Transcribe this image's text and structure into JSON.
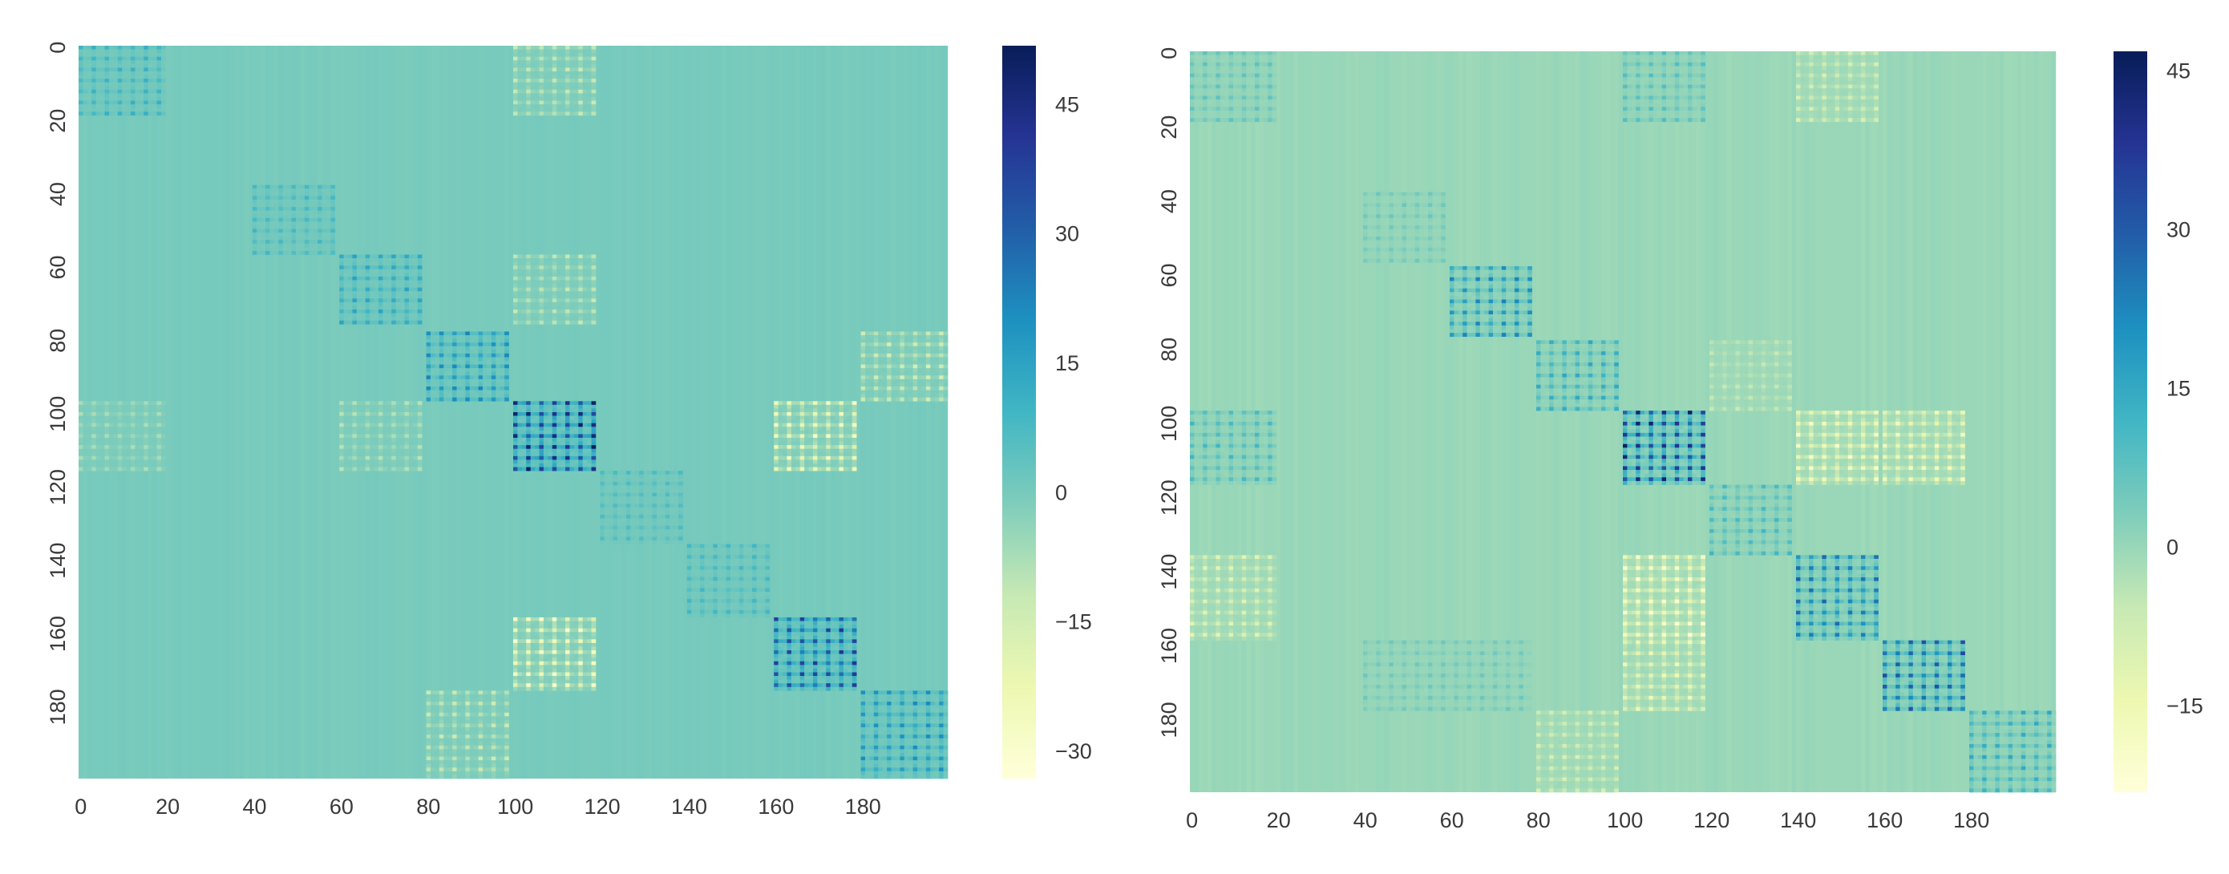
{
  "chart_data": [
    {
      "type": "heatmap",
      "title": "",
      "xlabel": "",
      "ylabel": "",
      "n": 200,
      "x_ticks": [
        0,
        20,
        40,
        60,
        80,
        100,
        120,
        140,
        160,
        180
      ],
      "y_ticks": [
        0,
        20,
        40,
        60,
        80,
        100,
        120,
        140,
        160,
        180
      ],
      "colorbar": {
        "vmin": -33,
        "vmax": 52,
        "ticks": [
          45,
          30,
          15,
          0,
          -15,
          -30
        ],
        "tick_labels": [
          "45",
          "30",
          "15",
          "0",
          "−15",
          "−30"
        ]
      },
      "background_value": 0,
      "blocks": [
        {
          "row": [
            0,
            18
          ],
          "col": [
            0,
            19
          ],
          "peak": 12
        },
        {
          "row": [
            0,
            18
          ],
          "col": [
            100,
            118
          ],
          "peak": -14
        },
        {
          "row": [
            38,
            56
          ],
          "col": [
            40,
            58
          ],
          "peak": 10
        },
        {
          "row": [
            57,
            75
          ],
          "col": [
            60,
            78
          ],
          "peak": 16
        },
        {
          "row": [
            57,
            75
          ],
          "col": [
            100,
            118
          ],
          "peak": -12
        },
        {
          "row": [
            78,
            96
          ],
          "col": [
            80,
            98
          ],
          "peak": 24
        },
        {
          "row": [
            78,
            96
          ],
          "col": [
            180,
            199
          ],
          "peak": -16
        },
        {
          "row": [
            97,
            115
          ],
          "col": [
            0,
            19
          ],
          "peak": -8
        },
        {
          "row": [
            97,
            115
          ],
          "col": [
            60,
            78
          ],
          "peak": -10
        },
        {
          "row": [
            97,
            115
          ],
          "col": [
            100,
            118
          ],
          "peak": 52
        },
        {
          "row": [
            97,
            115
          ],
          "col": [
            160,
            178
          ],
          "peak": -28
        },
        {
          "row": [
            116,
            135
          ],
          "col": [
            120,
            138
          ],
          "peak": 8
        },
        {
          "row": [
            136,
            155
          ],
          "col": [
            140,
            158
          ],
          "peak": 10
        },
        {
          "row": [
            156,
            175
          ],
          "col": [
            100,
            118
          ],
          "peak": -30
        },
        {
          "row": [
            156,
            175
          ],
          "col": [
            160,
            178
          ],
          "peak": 42
        },
        {
          "row": [
            176,
            199
          ],
          "col": [
            80,
            98
          ],
          "peak": -14
        },
        {
          "row": [
            176,
            199
          ],
          "col": [
            180,
            199
          ],
          "peak": 22
        }
      ]
    },
    {
      "type": "heatmap",
      "title": "",
      "xlabel": "",
      "ylabel": "",
      "n": 200,
      "x_ticks": [
        0,
        20,
        40,
        60,
        80,
        100,
        120,
        140,
        160,
        180
      ],
      "y_ticks": [
        0,
        20,
        40,
        60,
        80,
        100,
        120,
        140,
        160,
        180
      ],
      "colorbar": {
        "vmin": -23,
        "vmax": 47,
        "ticks": [
          45,
          30,
          15,
          0,
          -15
        ],
        "tick_labels": [
          "45",
          "30",
          "15",
          "0",
          "−15"
        ]
      },
      "background_value": 0,
      "blocks": [
        {
          "row": [
            0,
            18
          ],
          "col": [
            0,
            19
          ],
          "peak": 8
        },
        {
          "row": [
            0,
            18
          ],
          "col": [
            100,
            118
          ],
          "peak": 10
        },
        {
          "row": [
            0,
            18
          ],
          "col": [
            140,
            158
          ],
          "peak": -10
        },
        {
          "row": [
            38,
            56
          ],
          "col": [
            40,
            58
          ],
          "peak": 6
        },
        {
          "row": [
            58,
            76
          ],
          "col": [
            60,
            78
          ],
          "peak": 24
        },
        {
          "row": [
            78,
            96
          ],
          "col": [
            80,
            98
          ],
          "peak": 16
        },
        {
          "row": [
            78,
            96
          ],
          "col": [
            120,
            138
          ],
          "peak": -6
        },
        {
          "row": [
            97,
            116
          ],
          "col": [
            0,
            19
          ],
          "peak": 12
        },
        {
          "row": [
            97,
            116
          ],
          "col": [
            100,
            118
          ],
          "peak": 46
        },
        {
          "row": [
            97,
            116
          ],
          "col": [
            140,
            158
          ],
          "peak": -20
        },
        {
          "row": [
            97,
            116
          ],
          "col": [
            160,
            178
          ],
          "peak": -18
        },
        {
          "row": [
            117,
            135
          ],
          "col": [
            120,
            138
          ],
          "peak": 12
        },
        {
          "row": [
            136,
            158
          ],
          "col": [
            0,
            19
          ],
          "peak": -12
        },
        {
          "row": [
            136,
            158
          ],
          "col": [
            100,
            118
          ],
          "peak": -22
        },
        {
          "row": [
            136,
            158
          ],
          "col": [
            140,
            158
          ],
          "peak": 30
        },
        {
          "row": [
            159,
            177
          ],
          "col": [
            40,
            78
          ],
          "peak": 6
        },
        {
          "row": [
            159,
            177
          ],
          "col": [
            100,
            118
          ],
          "peak": -16
        },
        {
          "row": [
            159,
            177
          ],
          "col": [
            160,
            178
          ],
          "peak": 34
        },
        {
          "row": [
            178,
            199
          ],
          "col": [
            80,
            98
          ],
          "peak": -10
        },
        {
          "row": [
            178,
            199
          ],
          "col": [
            180,
            199
          ],
          "peak": 16
        }
      ]
    }
  ]
}
